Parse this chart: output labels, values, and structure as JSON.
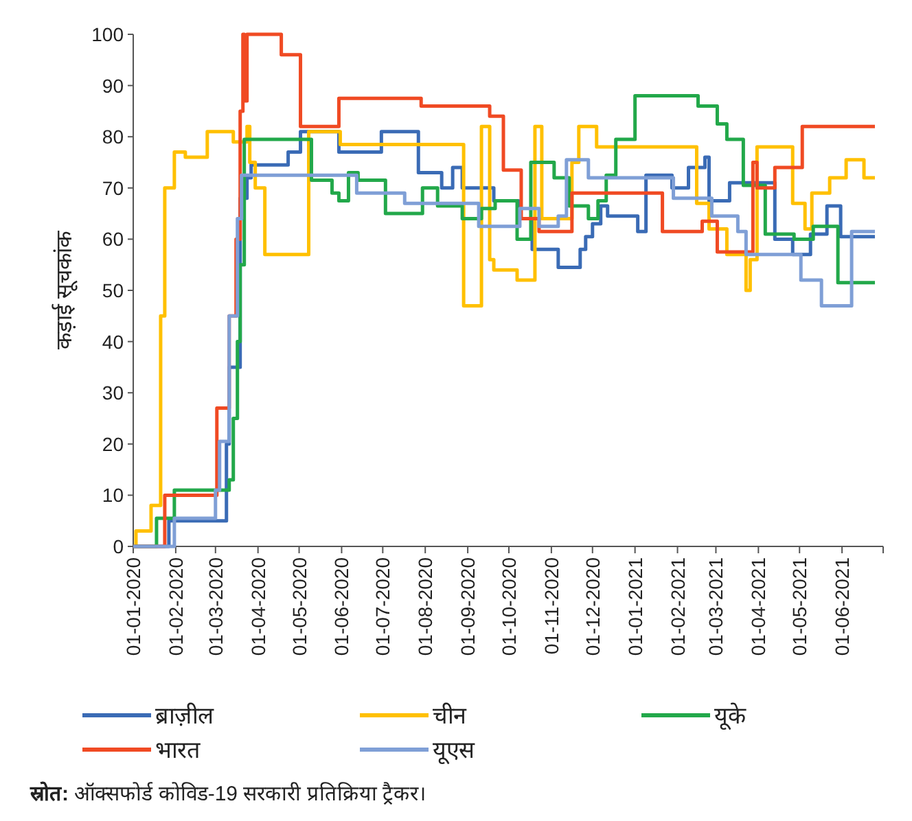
{
  "chart_data": {
    "type": "step",
    "ylabel": "कड़ाई सूचकांक",
    "legend": "bottom",
    "xlim": [
      "2020-01-01",
      "2021-07-01"
    ],
    "ylim": [
      0,
      100
    ],
    "yticks": [
      0,
      10,
      20,
      30,
      40,
      50,
      60,
      70,
      80,
      90,
      100
    ],
    "xticks": [
      {
        "value": "2020-01-01",
        "label": "01-01-2020"
      },
      {
        "value": "2020-02-01",
        "label": "01-02-2020"
      },
      {
        "value": "2020-03-01",
        "label": "01-03-2020"
      },
      {
        "value": "2020-04-01",
        "label": "01-04-2020"
      },
      {
        "value": "2020-05-01",
        "label": "01-05-2020"
      },
      {
        "value": "2020-06-01",
        "label": "01-06-2020"
      },
      {
        "value": "2020-07-01",
        "label": "01-07-2020"
      },
      {
        "value": "2020-08-01",
        "label": "01-08-2020"
      },
      {
        "value": "2020-09-01",
        "label": "01-09-2020"
      },
      {
        "value": "2020-10-01",
        "label": "01-10-2020"
      },
      {
        "value": "2020-11-01",
        "label": "01-11-2020"
      },
      {
        "value": "2020-12-01",
        "label": "01-12-2020"
      },
      {
        "value": "2021-01-01",
        "label": "01-01-2021"
      },
      {
        "value": "2021-02-01",
        "label": "01-02-2021"
      },
      {
        "value": "2021-03-01",
        "label": "01-03-2021"
      },
      {
        "value": "2021-04-01",
        "label": "01-04-2021"
      },
      {
        "value": "2021-05-01",
        "label": "01-05-2021"
      },
      {
        "value": "2021-06-01",
        "label": "01-06-2021"
      },
      {
        "value": "2021-07-01",
        "label": null
      }
    ],
    "series": [
      {
        "name": "ब्राज़ील",
        "color": "#3a6bb5",
        "x": [
          "2020-01-01",
          "2020-01-27",
          "2020-03-09",
          "2020-03-11",
          "2020-03-19",
          "2020-03-24",
          "2020-03-27",
          "2020-04-23",
          "2020-05-02",
          "2020-05-30",
          "2020-06-30",
          "2020-07-27",
          "2020-08-13",
          "2020-08-21",
          "2020-08-28",
          "2020-09-20",
          "2020-10-08",
          "2020-10-18",
          "2020-11-06",
          "2020-11-22",
          "2020-11-26",
          "2020-12-01",
          "2020-12-07",
          "2020-12-12",
          "2021-01-03",
          "2021-01-09",
          "2021-01-28",
          "2021-02-09",
          "2021-02-21",
          "2021-02-24",
          "2021-03-11",
          "2021-04-13",
          "2021-04-26",
          "2021-05-09",
          "2021-05-21",
          "2021-05-31",
          "2021-06-25"
        ],
        "values": [
          0,
          5,
          20,
          35,
          68,
          72,
          74.5,
          77,
          81,
          77,
          81,
          73,
          70,
          74,
          70,
          67.5,
          64,
          58,
          54.5,
          58,
          60.5,
          63,
          66.5,
          64.5,
          61.5,
          72.5,
          70,
          74,
          76,
          67.5,
          71,
          60,
          57,
          61,
          66.5,
          60.5,
          60.5
        ]
      },
      {
        "name": "चीन",
        "color": "#ffc000",
        "x": [
          "2020-01-01",
          "2020-01-03",
          "2020-01-14",
          "2020-01-21",
          "2020-01-24",
          "2020-01-31",
          "2020-02-08",
          "2020-02-24",
          "2020-03-14",
          "2020-03-24",
          "2020-03-26",
          "2020-03-30",
          "2020-04-06",
          "2020-05-08",
          "2020-05-31",
          "2020-08-29",
          "2020-09-11",
          "2020-09-17",
          "2020-09-20",
          "2020-10-07",
          "2020-10-20",
          "2020-10-25",
          "2020-11-16",
          "2020-11-21",
          "2020-12-04",
          "2021-02-15",
          "2021-02-24",
          "2021-03-09",
          "2021-03-23",
          "2021-03-26",
          "2021-03-31",
          "2021-04-26",
          "2021-05-05",
          "2021-05-10",
          "2021-05-23",
          "2021-06-04",
          "2021-06-17",
          "2021-06-25"
        ],
        "values": [
          0,
          3,
          8,
          45,
          70,
          77,
          76,
          81,
          79,
          82,
          75,
          70,
          57,
          81,
          78.5,
          47,
          82,
          56,
          54,
          52,
          82,
          64,
          75,
          82,
          78,
          67,
          62,
          57,
          50,
          56,
          78,
          67,
          62,
          69,
          72,
          75.5,
          72,
          72
        ]
      },
      {
        "name": "यूके",
        "color": "#22a84a",
        "x": [
          "2020-01-01",
          "2020-01-18",
          "2020-01-31",
          "2020-03-11",
          "2020-03-14",
          "2020-03-17",
          "2020-03-19",
          "2020-03-22",
          "2020-05-10",
          "2020-05-25",
          "2020-05-30",
          "2020-06-06",
          "2020-06-13",
          "2020-07-03",
          "2020-07-30",
          "2020-08-10",
          "2020-08-28",
          "2020-09-11",
          "2020-09-21",
          "2020-10-07",
          "2020-10-17",
          "2020-11-03",
          "2020-11-14",
          "2020-11-28",
          "2020-12-05",
          "2020-12-11",
          "2020-12-18",
          "2021-01-01",
          "2021-02-16",
          "2021-03-02",
          "2021-03-09",
          "2021-03-21",
          "2021-04-06",
          "2021-04-27",
          "2021-05-11",
          "2021-05-29",
          "2021-06-25"
        ],
        "values": [
          0,
          5.5,
          11,
          13,
          25,
          40,
          55,
          79.5,
          71.5,
          69,
          67.5,
          73,
          71.5,
          65,
          70,
          66.5,
          64,
          66,
          67.5,
          60,
          75,
          72,
          66.5,
          64,
          67.5,
          72.5,
          79.5,
          88,
          86,
          82.5,
          79.5,
          70.5,
          61,
          60,
          62.5,
          51.5,
          51.5
        ]
      },
      {
        "name": "भारत",
        "color": "#f04a23",
        "x": [
          "2020-01-01",
          "2020-01-24",
          "2020-03-02",
          "2020-03-11",
          "2020-03-16",
          "2020-03-19",
          "2020-03-21",
          "2020-03-22",
          "2020-03-24",
          "2020-04-18",
          "2020-05-02",
          "2020-05-30",
          "2020-07-29",
          "2020-09-17",
          "2020-09-27",
          "2020-10-10",
          "2020-10-23",
          "2020-11-16",
          "2021-01-21",
          "2021-02-19",
          "2021-03-02",
          "2021-03-28",
          "2021-03-31",
          "2021-04-13",
          "2021-05-03",
          "2021-06-25"
        ],
        "values": [
          0,
          10,
          27,
          45,
          60,
          85,
          100,
          87,
          100,
          96,
          82,
          87.5,
          86,
          84,
          73.5,
          64,
          61.5,
          69,
          61.5,
          63.5,
          57.5,
          75,
          70,
          74,
          82,
          82
        ]
      },
      {
        "name": "यूएस",
        "color": "#7f9fd6",
        "x": [
          "2020-01-01",
          "2020-01-31",
          "2020-03-01",
          "2020-03-04",
          "2020-03-11",
          "2020-03-17",
          "2020-03-20",
          "2020-06-12",
          "2020-07-17",
          "2020-09-09",
          "2020-10-09",
          "2020-10-23",
          "2020-11-06",
          "2020-11-12",
          "2020-11-28",
          "2021-01-29",
          "2021-02-26",
          "2021-03-17",
          "2021-03-23",
          "2021-05-02",
          "2021-05-17",
          "2021-06-08",
          "2021-06-25"
        ],
        "values": [
          0,
          5.5,
          11,
          20.5,
          45,
          64,
          72.5,
          69,
          67,
          62.5,
          66,
          62.5,
          64.5,
          75.5,
          72,
          68,
          64.5,
          61.5,
          57,
          52,
          47,
          61.5,
          61.5
        ]
      }
    ],
    "annotations": [
      "**स्रोत:** ऑक्सफोर्ड कोविड-19 सरकारी प्रतिक्रिया ट्रैकर।"
    ]
  }
}
